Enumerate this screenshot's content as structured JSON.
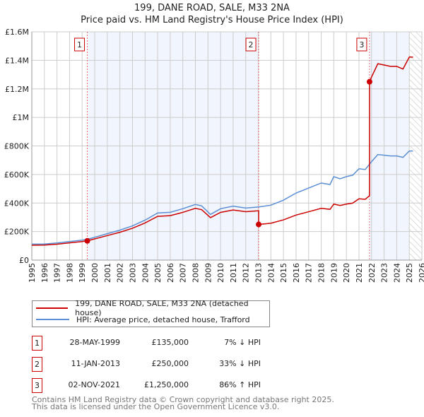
{
  "title": "199, DANE ROAD, SALE, M33 2NA",
  "subtitle": "Price paid vs. HM Land Registry's House Price Index (HPI)",
  "chart_data": {
    "type": "line",
    "xlim": [
      1995,
      2026
    ],
    "ylim": [
      0,
      1600000
    ],
    "yticks": [
      0,
      200000,
      400000,
      600000,
      800000,
      1000000,
      1200000,
      1400000,
      1600000
    ],
    "ytick_labels": [
      "£0",
      "£200K",
      "£400K",
      "£600K",
      "£800K",
      "£1M",
      "£1.2M",
      "£1.4M",
      "£1.6M"
    ],
    "xticks": [
      "1995",
      "1996",
      "1997",
      "1998",
      "1999",
      "2000",
      "2001",
      "2002",
      "2003",
      "2004",
      "2005",
      "2006",
      "2007",
      "2008",
      "2009",
      "2010",
      "2011",
      "2012",
      "2013",
      "2014",
      "2015",
      "2016",
      "2017",
      "2018",
      "2019",
      "2020",
      "2021",
      "2022",
      "2023",
      "2024",
      "2025",
      "2026"
    ],
    "grid": true,
    "legend_placement": "below",
    "forecast_hatch_from": 2025.0,
    "series": [
      {
        "name": "HPI: Average price, detached house, Trafford",
        "color": "#5b8fd4",
        "x": [
          1995,
          1996,
          1997,
          1998,
          1999,
          1999.4,
          2000,
          2001,
          2002,
          2003,
          2004,
          2005,
          2006,
          2007,
          2008,
          2008.5,
          2009.2,
          2010,
          2011,
          2012,
          2013,
          2014,
          2015,
          2016,
          2017,
          2018,
          2018.7,
          2019,
          2019.5,
          2020,
          2020.5,
          2021,
          2021.5,
          2021.84,
          2022,
          2022.5,
          2023,
          2023.5,
          2024,
          2024.5,
          2025,
          2025.3
        ],
        "y": [
          112000,
          113000,
          120000,
          130000,
          140000,
          145000,
          160000,
          185000,
          210000,
          240000,
          280000,
          330000,
          335000,
          360000,
          390000,
          380000,
          320000,
          360000,
          378000,
          365000,
          372000,
          385000,
          420000,
          470000,
          505000,
          540000,
          530000,
          585000,
          570000,
          585000,
          595000,
          640000,
          635000,
          672000,
          690000,
          740000,
          735000,
          730000,
          730000,
          720000,
          765000,
          765000
        ]
      },
      {
        "name": "199, DANE ROAD, SALE, M33 2NA (detached house)",
        "color": "#cc0000"
      }
    ],
    "sales": [
      {
        "id": "1",
        "x": 1999.41,
        "price": 135000
      },
      {
        "id": "2",
        "x": 2013.03,
        "price": 250000
      },
      {
        "id": "3",
        "x": 2021.84,
        "price": 1250000
      }
    ]
  },
  "legend": {
    "property": "199, DANE ROAD, SALE, M33 2NA (detached house)",
    "hpi": "HPI: Average price, detached house, Trafford"
  },
  "transactions": [
    {
      "num": "1",
      "date": "28-MAY-1999",
      "price": "£135,000",
      "hpi": "7% ↓ HPI"
    },
    {
      "num": "2",
      "date": "11-JAN-2013",
      "price": "£250,000",
      "hpi": "33% ↓ HPI"
    },
    {
      "num": "3",
      "date": "02-NOV-2021",
      "price": "£1,250,000",
      "hpi": "86% ↑ HPI"
    }
  ],
  "footer": {
    "line1": "Contains HM Land Registry data © Crown copyright and database right 2025.",
    "line2": "This data is licensed under the Open Government Licence v3.0."
  }
}
